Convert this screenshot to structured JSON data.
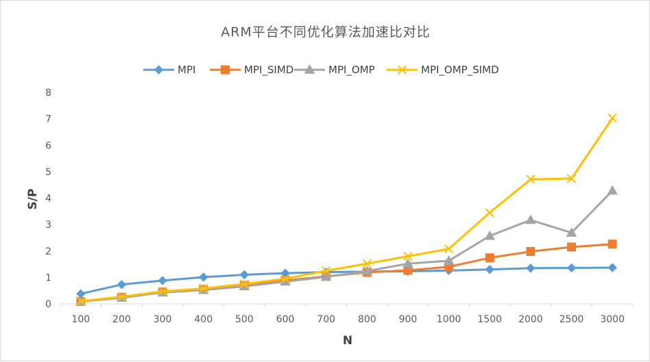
{
  "chart_data": {
    "type": "line",
    "title": "ARM平台不同优化算法加速比对比",
    "xlabel": "N",
    "ylabel": "S/P",
    "categories": [
      "100",
      "200",
      "300",
      "400",
      "500",
      "600",
      "700",
      "800",
      "900",
      "1000",
      "1500",
      "2000",
      "2500",
      "3000"
    ],
    "ylim": [
      0,
      8
    ],
    "yticks": [
      "0",
      "1",
      "2",
      "3",
      "4",
      "5",
      "6",
      "7",
      "8"
    ],
    "grid": false,
    "legend_position": "top",
    "series": [
      {
        "name": "MPI",
        "color": "#5B9BD5",
        "marker": "diamond",
        "values": [
          0.38,
          0.73,
          0.88,
          1.01,
          1.1,
          1.16,
          1.2,
          1.22,
          1.23,
          1.26,
          1.3,
          1.35,
          1.36,
          1.37
        ]
      },
      {
        "name": "MPI_SIMD",
        "color": "#ED7D31",
        "marker": "square",
        "values": [
          0.09,
          0.25,
          0.45,
          0.55,
          0.7,
          0.88,
          1.04,
          1.19,
          1.27,
          1.4,
          1.74,
          1.98,
          2.15,
          2.26
        ]
      },
      {
        "name": "MPI_OMP",
        "color": "#A5A5A5",
        "marker": "triangle",
        "values": [
          0.08,
          0.23,
          0.43,
          0.52,
          0.66,
          0.84,
          1.02,
          1.24,
          1.52,
          1.63,
          2.57,
          3.17,
          2.69,
          4.28
        ]
      },
      {
        "name": "MPI_OMP_SIMD",
        "color": "#FFC000",
        "marker": "x",
        "values": [
          0.1,
          0.27,
          0.47,
          0.58,
          0.75,
          0.95,
          1.25,
          1.52,
          1.8,
          2.08,
          3.45,
          4.71,
          4.74,
          7.03
        ]
      }
    ]
  }
}
